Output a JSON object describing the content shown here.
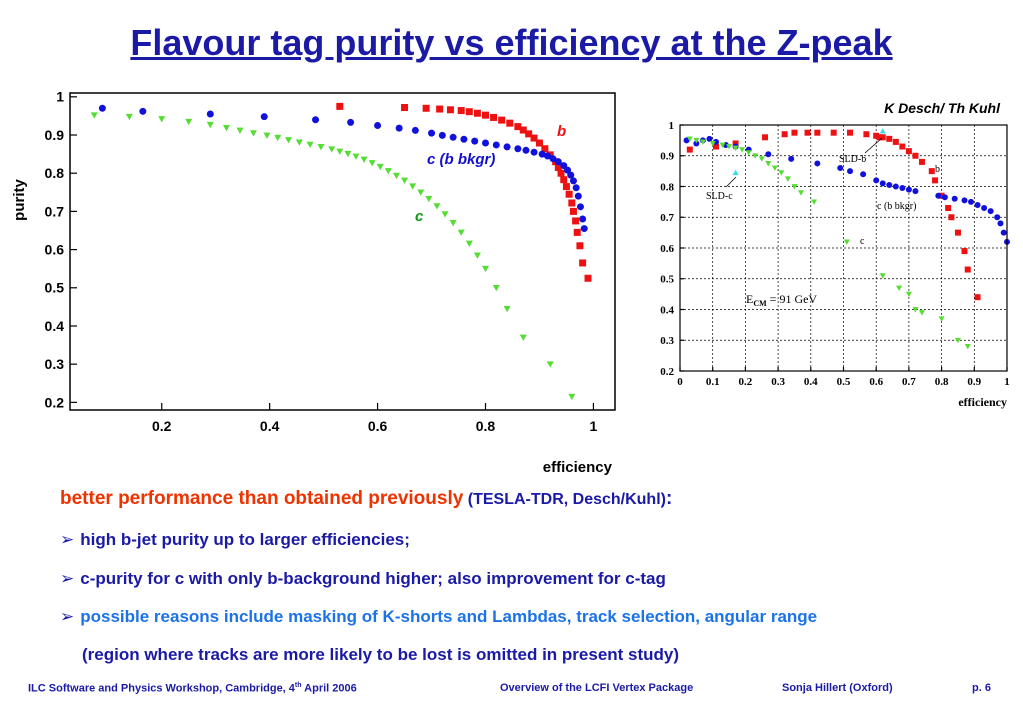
{
  "title": "Flavour tag purity vs efficiency at the Z-peak",
  "chart_data": [
    {
      "type": "scatter",
      "xlabel": "efficiency",
      "ylabel": "purity",
      "xlim": [
        0.03,
        1.04
      ],
      "ylim": [
        0.18,
        1.01
      ],
      "x_ticks": [
        "0.2",
        "0.4",
        "0.6",
        "0.8",
        "1"
      ],
      "y_ticks": [
        "0.2",
        "0.3",
        "0.4",
        "0.5",
        "0.6",
        "0.7",
        "0.8",
        "0.9",
        "1"
      ],
      "series": [
        {
          "name": "b",
          "marker": "square",
          "color": "#ee1111",
          "x": [
            0.53,
            0.65,
            0.69,
            0.715,
            0.735,
            0.755,
            0.77,
            0.785,
            0.8,
            0.815,
            0.83,
            0.845,
            0.86,
            0.87,
            0.88,
            0.89,
            0.9,
            0.91,
            0.92,
            0.93,
            0.935,
            0.94,
            0.945,
            0.95,
            0.955,
            0.96,
            0.963,
            0.967,
            0.97,
            0.975,
            0.98,
            0.99
          ],
          "y": [
            0.975,
            0.972,
            0.97,
            0.968,
            0.966,
            0.964,
            0.961,
            0.957,
            0.952,
            0.946,
            0.939,
            0.931,
            0.922,
            0.913,
            0.903,
            0.892,
            0.879,
            0.864,
            0.848,
            0.83,
            0.815,
            0.8,
            0.783,
            0.765,
            0.745,
            0.722,
            0.7,
            0.675,
            0.645,
            0.61,
            0.565,
            0.525
          ]
        },
        {
          "name": "c (b bkgr)",
          "marker": "circle",
          "color": "#1111dd",
          "x": [
            0.09,
            0.165,
            0.29,
            0.39,
            0.485,
            0.55,
            0.6,
            0.64,
            0.67,
            0.7,
            0.72,
            0.74,
            0.76,
            0.78,
            0.8,
            0.82,
            0.84,
            0.86,
            0.875,
            0.89,
            0.905,
            0.915,
            0.925,
            0.935,
            0.945,
            0.952,
            0.958,
            0.963,
            0.968,
            0.972,
            0.976,
            0.98,
            0.983
          ],
          "y": [
            0.97,
            0.962,
            0.955,
            0.948,
            0.94,
            0.933,
            0.925,
            0.918,
            0.912,
            0.905,
            0.899,
            0.894,
            0.889,
            0.884,
            0.879,
            0.874,
            0.869,
            0.864,
            0.86,
            0.855,
            0.85,
            0.845,
            0.838,
            0.83,
            0.82,
            0.808,
            0.795,
            0.78,
            0.762,
            0.74,
            0.712,
            0.68,
            0.655
          ]
        },
        {
          "name": "c",
          "marker": "triangle-down",
          "color": "#55dd33",
          "x": [
            0.075,
            0.14,
            0.2,
            0.25,
            0.29,
            0.32,
            0.345,
            0.37,
            0.395,
            0.415,
            0.435,
            0.455,
            0.475,
            0.495,
            0.515,
            0.53,
            0.545,
            0.56,
            0.575,
            0.59,
            0.605,
            0.62,
            0.635,
            0.65,
            0.665,
            0.68,
            0.695,
            0.71,
            0.725,
            0.74,
            0.755,
            0.77,
            0.785,
            0.8,
            0.82,
            0.84,
            0.87,
            0.92,
            0.96
          ],
          "y": [
            0.952,
            0.948,
            0.942,
            0.935,
            0.927,
            0.919,
            0.912,
            0.905,
            0.899,
            0.893,
            0.887,
            0.881,
            0.875,
            0.869,
            0.863,
            0.857,
            0.851,
            0.844,
            0.836,
            0.827,
            0.817,
            0.806,
            0.794,
            0.781,
            0.766,
            0.75,
            0.733,
            0.714,
            0.693,
            0.67,
            0.645,
            0.616,
            0.585,
            0.55,
            0.5,
            0.445,
            0.37,
            0.3,
            0.215
          ]
        }
      ]
    },
    {
      "type": "scatter",
      "title": "K Desch/ Th Kuhl",
      "xlabel": "efficiency",
      "xlim": [
        0,
        1
      ],
      "ylim": [
        0.2,
        1
      ],
      "x_ticks": [
        "0",
        "0.1",
        "0.2",
        "0.3",
        "0.4",
        "0.5",
        "0.6",
        "0.7",
        "0.8",
        "0.9",
        "1"
      ],
      "y_ticks": [
        "0.2",
        "0.3",
        "0.4",
        "0.5",
        "0.6",
        "0.7",
        "0.8",
        "0.9",
        "1"
      ],
      "annotation": "E",
      "annotation_sub": "CM",
      "annotation_rest": " = 91 GeV",
      "series": [
        {
          "name": "b",
          "marker": "square",
          "color": "#ee1111",
          "x": [
            0.03,
            0.11,
            0.17,
            0.26,
            0.32,
            0.35,
            0.39,
            0.42,
            0.47,
            0.52,
            0.57,
            0.6,
            0.61,
            0.62,
            0.64,
            0.66,
            0.68,
            0.7,
            0.72,
            0.74,
            0.77,
            0.78,
            0.8,
            0.82,
            0.83,
            0.85,
            0.87,
            0.88,
            0.91
          ],
          "y": [
            0.92,
            0.93,
            0.94,
            0.96,
            0.97,
            0.975,
            0.975,
            0.975,
            0.975,
            0.975,
            0.97,
            0.965,
            0.96,
            0.96,
            0.955,
            0.945,
            0.93,
            0.915,
            0.9,
            0.88,
            0.85,
            0.82,
            0.77,
            0.73,
            0.7,
            0.65,
            0.59,
            0.53,
            0.44
          ]
        },
        {
          "name": "c (b bkgr)",
          "marker": "circle",
          "color": "#1111dd",
          "x": [
            0.02,
            0.05,
            0.07,
            0.09,
            0.11,
            0.14,
            0.17,
            0.21,
            0.27,
            0.34,
            0.42,
            0.49,
            0.52,
            0.56,
            0.6,
            0.62,
            0.64,
            0.66,
            0.68,
            0.7,
            0.72,
            0.79,
            0.81,
            0.84,
            0.87,
            0.89,
            0.91,
            0.93,
            0.95,
            0.97,
            0.98,
            0.99,
            1.0
          ],
          "y": [
            0.95,
            0.94,
            0.95,
            0.955,
            0.945,
            0.935,
            0.93,
            0.92,
            0.905,
            0.89,
            0.875,
            0.86,
            0.85,
            0.84,
            0.82,
            0.81,
            0.805,
            0.8,
            0.795,
            0.79,
            0.785,
            0.77,
            0.765,
            0.76,
            0.755,
            0.75,
            0.74,
            0.73,
            0.72,
            0.7,
            0.68,
            0.65,
            0.62
          ]
        },
        {
          "name": "c",
          "marker": "triangle-down",
          "color": "#55dd33",
          "x": [
            0.03,
            0.05,
            0.07,
            0.1,
            0.13,
            0.15,
            0.17,
            0.19,
            0.21,
            0.23,
            0.25,
            0.27,
            0.29,
            0.31,
            0.33,
            0.35,
            0.37,
            0.41,
            0.51,
            0.62,
            0.67,
            0.7,
            0.72,
            0.74,
            0.8,
            0.85,
            0.88
          ],
          "y": [
            0.955,
            0.95,
            0.945,
            0.94,
            0.935,
            0.93,
            0.925,
            0.92,
            0.91,
            0.9,
            0.89,
            0.875,
            0.86,
            0.845,
            0.825,
            0.8,
            0.78,
            0.75,
            0.62,
            0.51,
            0.47,
            0.45,
            0.4,
            0.39,
            0.37,
            0.3,
            0.28
          ]
        },
        {
          "name": "SLD-b",
          "marker": "triangle-up",
          "color": "#33ddee",
          "x": [
            0.62
          ],
          "y": [
            0.98
          ]
        },
        {
          "name": "SLD-c",
          "marker": "triangle-up",
          "color": "#33ddee",
          "x": [
            0.17
          ],
          "y": [
            0.845
          ]
        }
      ]
    }
  ],
  "bullets": {
    "line1_red": "better performance than obtained previously",
    "line1_blue": " (TESLA-TDR, Desch/Kuhl)",
    "line1_colon": ":",
    "arrow": "➢",
    "line2": "high b-jet purity up to larger efficiencies;",
    "line3": "c-purity for c with only b-background higher; also improvement for c-tag",
    "line4": "possible reasons include masking of K-shorts and Lambdas, track selection, angular range",
    "line5": "(region where tracks are more likely to be lost is omitted in present study)"
  },
  "footer": {
    "left_a": "ILC Software and Physics Workshop, Cambridge, 4",
    "left_sup": "th",
    "left_b": " April 2006",
    "middle": "Overview of the LCFI Vertex Package",
    "author": "Sonja Hillert (Oxford)",
    "page": "p. 6"
  }
}
